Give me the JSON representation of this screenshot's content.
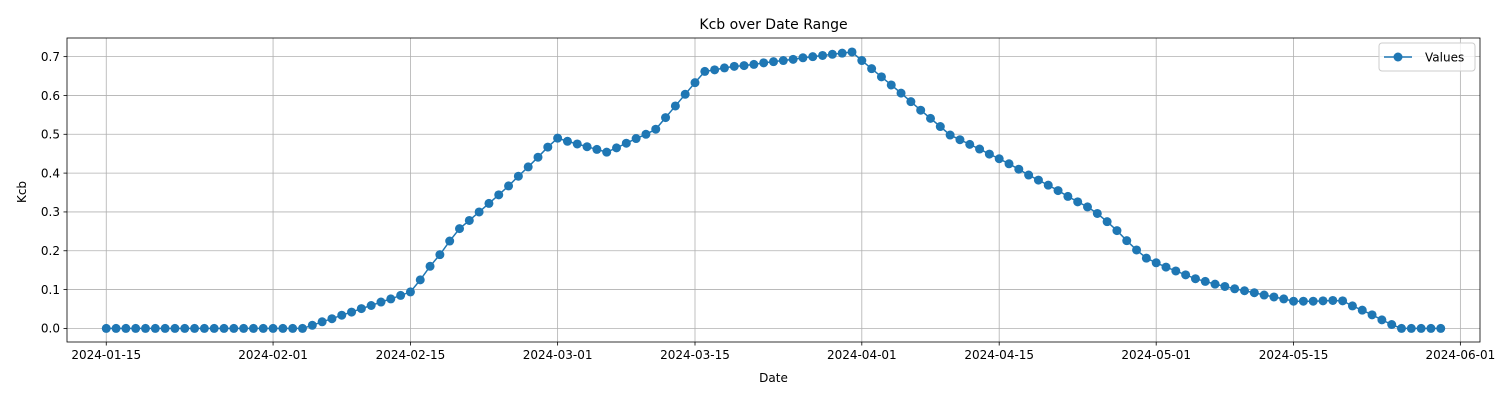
{
  "chart_data": {
    "type": "line",
    "title": "Kcb over Date Range",
    "xlabel": "Date",
    "ylabel": "Kcb",
    "x_start": "2024-01-15",
    "x_step_days": 1,
    "xlim": [
      "2024-01-11",
      "2024-06-03"
    ],
    "ylim": [
      -0.035,
      0.748
    ],
    "x_ticks": [
      "2024-01-15",
      "2024-02-01",
      "2024-02-15",
      "2024-03-01",
      "2024-03-15",
      "2024-04-01",
      "2024-04-15",
      "2024-05-01",
      "2024-05-15",
      "2024-06-01"
    ],
    "y_ticks": [
      0.0,
      0.1,
      0.2,
      0.3,
      0.4,
      0.5,
      0.6,
      0.7
    ],
    "y_tick_labels": [
      "0.0",
      "0.1",
      "0.2",
      "0.3",
      "0.4",
      "0.5",
      "0.6",
      "0.7"
    ],
    "grid": true,
    "legend_position": "top-right",
    "series": [
      {
        "name": "Values",
        "color": "#1f77b4",
        "marker": "circle",
        "values": [
          0.0,
          0.0,
          0.0,
          0.0,
          0.0,
          0.0,
          0.0,
          0.0,
          0.0,
          0.0,
          0.0,
          0.0,
          0.0,
          0.0,
          0.0,
          0.0,
          0.0,
          0.0,
          0.0,
          0.0,
          0.0,
          0.008,
          0.017,
          0.025,
          0.034,
          0.042,
          0.051,
          0.059,
          0.068,
          0.076,
          0.085,
          0.094,
          0.125,
          0.16,
          0.19,
          0.225,
          0.257,
          0.278,
          0.3,
          0.322,
          0.344,
          0.367,
          0.392,
          0.416,
          0.441,
          0.467,
          0.49,
          0.482,
          0.475,
          0.468,
          0.461,
          0.454,
          0.465,
          0.477,
          0.489,
          0.5,
          0.513,
          0.543,
          0.573,
          0.603,
          0.633,
          0.662,
          0.666,
          0.671,
          0.675,
          0.677,
          0.68,
          0.684,
          0.687,
          0.69,
          0.693,
          0.697,
          0.7,
          0.703,
          0.706,
          0.709,
          0.712,
          0.69,
          0.669,
          0.648,
          0.627,
          0.606,
          0.584,
          0.562,
          0.541,
          0.52,
          0.498,
          0.486,
          0.474,
          0.462,
          0.449,
          0.437,
          0.424,
          0.41,
          0.395,
          0.382,
          0.369,
          0.355,
          0.34,
          0.326,
          0.313,
          0.296,
          0.275,
          0.252,
          0.226,
          0.202,
          0.181,
          0.169,
          0.158,
          0.148,
          0.138,
          0.128,
          0.121,
          0.114,
          0.108,
          0.102,
          0.097,
          0.092,
          0.086,
          0.081,
          0.076,
          0.07,
          0.07,
          0.07,
          0.071,
          0.072,
          0.071,
          0.058,
          0.047,
          0.035,
          0.022,
          0.01,
          0.0,
          0.0,
          0.0,
          0.0,
          0.0
        ]
      }
    ]
  }
}
